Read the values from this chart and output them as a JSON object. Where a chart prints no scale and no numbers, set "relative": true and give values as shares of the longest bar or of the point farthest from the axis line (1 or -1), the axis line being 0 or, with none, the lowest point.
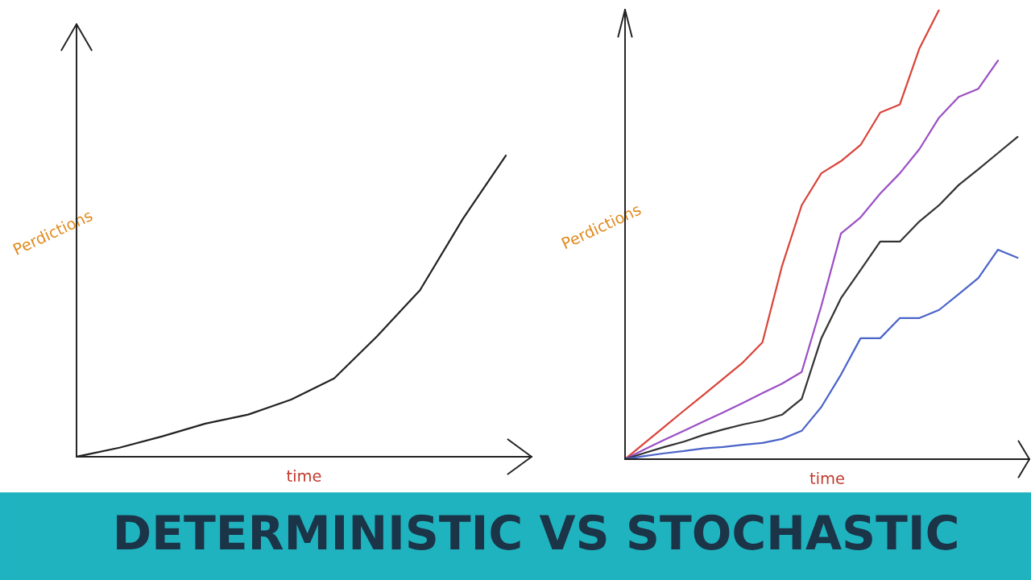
{
  "chart_data": [
    {
      "type": "line",
      "title": "DETERMINISTIC VS STOCHASTIC",
      "xlabel": "time",
      "ylabel": "Perdictions",
      "relative": true,
      "categories": [
        null,
        null,
        null,
        null,
        null,
        null,
        null,
        null,
        null,
        null,
        null
      ],
      "series": [
        {
          "color": "#222222",
          "values": [
            0,
            0.03,
            0.068,
            0.11,
            0.14,
            0.19,
            0.26,
            0.4,
            0.553,
            0.79,
            1
          ]
        }
      ]
    },
    {
      "type": "line",
      "xlabel": "time",
      "ylabel": "Perdictions",
      "relative": true,
      "categories": [
        null,
        null,
        null,
        null,
        null,
        null,
        null,
        null,
        null,
        null,
        null,
        null,
        null,
        null,
        null,
        null,
        null,
        null,
        null,
        null,
        null
      ],
      "series": [
        {
          "color": "#d9443a",
          "values": [
            0,
            0.036,
            0.072,
            0.108,
            0.143,
            0.179,
            0.215,
            0.26,
            0.43,
            0.565,
            0.636,
            0.663,
            0.699,
            0.771,
            0.789,
            0.914,
            1,
            null,
            null,
            null,
            null
          ]
        },
        {
          "color": "#9b4fc4",
          "values": [
            0,
            0.022,
            0.043,
            0.063,
            0.084,
            0.104,
            0.125,
            0.147,
            0.168,
            0.194,
            0.341,
            0.502,
            0.538,
            0.591,
            0.636,
            0.69,
            0.76,
            0.806,
            0.824,
            0.887,
            null
          ]
        },
        {
          "color": "#333333",
          "values": [
            0,
            0.014,
            0.027,
            0.039,
            0.054,
            0.066,
            0.077,
            0.086,
            0.099,
            0.134,
            0.269,
            0.358,
            0.421,
            0.484,
            0.484,
            0.529,
            0.565,
            0.61,
            0.645,
            0.681,
            0.717
          ]
        },
        {
          "color": "#4a63c9",
          "values": [
            0,
            0.007,
            0.013,
            0.018,
            0.024,
            0.027,
            0.032,
            0.036,
            0.045,
            0.063,
            0.116,
            0.188,
            0.269,
            0.269,
            0.314,
            0.314,
            0.332,
            0.367,
            0.403,
            0.466,
            0.448
          ]
        }
      ]
    }
  ]
}
